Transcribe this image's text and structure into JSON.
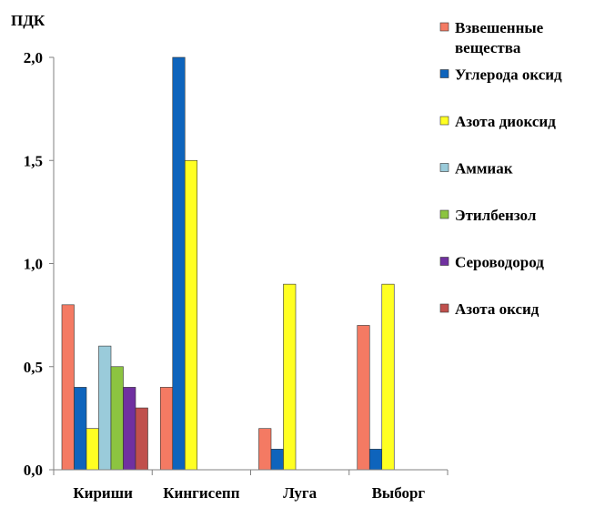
{
  "chart_data": {
    "type": "bar",
    "ylabel": "ПДК",
    "ylim": [
      0,
      2.0
    ],
    "yticks": [
      0.0,
      0.5,
      1.0,
      1.5,
      2.0
    ],
    "ytick_labels": [
      "0,0",
      "0,5",
      "1,0",
      "1,5",
      "2,0"
    ],
    "categories": [
      "Кириши",
      "Кингисепп",
      "Луга",
      "Выборг"
    ],
    "legend_position": "right",
    "series": [
      {
        "name": "Взвешенные вещества",
        "color": "#F47A63",
        "values": [
          0.8,
          0.4,
          0.2,
          0.7
        ]
      },
      {
        "name": "Углерода оксид",
        "color": "#0E64BC",
        "values": [
          0.4,
          2.0,
          0.1,
          0.1
        ]
      },
      {
        "name": "Азота диоксид",
        "color": "#FFFF22",
        "values": [
          0.2,
          1.5,
          0.9,
          0.9
        ]
      },
      {
        "name": "Аммиак",
        "color": "#9ACBDA",
        "values": [
          0.6,
          null,
          null,
          null
        ]
      },
      {
        "name": "Этилбензол",
        "color": "#8CC440",
        "values": [
          0.5,
          null,
          null,
          null
        ]
      },
      {
        "name": "Сероводород",
        "color": "#7030A0",
        "values": [
          0.4,
          null,
          null,
          null
        ]
      },
      {
        "name": "Азота оксид",
        "color": "#C0504D",
        "values": [
          0.3,
          null,
          null,
          null
        ]
      }
    ]
  }
}
